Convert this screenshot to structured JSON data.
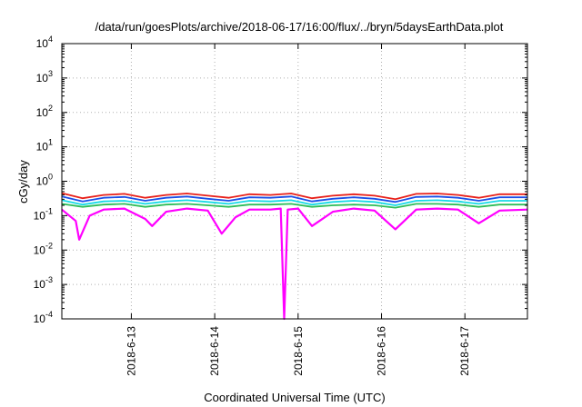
{
  "chart_data": {
    "type": "line",
    "title": "/data/run/goesPlots/archive/2018-06-17/16:00/flux/../bryn/5daysEarthData.plot",
    "xlabel": "Coordinated Universal Time (UTC)",
    "ylabel": "cGy/day",
    "yscale": "log",
    "ylim": [
      0.0001,
      10000
    ],
    "y_ticks": [
      {
        "base": "10",
        "exp": "-4"
      },
      {
        "base": "10",
        "exp": "-3"
      },
      {
        "base": "10",
        "exp": "-2"
      },
      {
        "base": "10",
        "exp": "-1"
      },
      {
        "base": "10",
        "exp": "0"
      },
      {
        "base": "10",
        "exp": "1"
      },
      {
        "base": "10",
        "exp": "2"
      },
      {
        "base": "10",
        "exp": "3"
      },
      {
        "base": "10",
        "exp": "4"
      }
    ],
    "xlim": [
      "2018-06-12 04:00",
      "2018-06-17 18:00"
    ],
    "x_ticks": [
      "2018-6-13",
      "2018-6-14",
      "2018-6-15",
      "2018-6-16",
      "2018-6-17"
    ],
    "grid": true,
    "colors": {
      "series": [
        "#e8201a",
        "#1a4fe8",
        "#17d9e6",
        "#2dbd58",
        "#ff00ff"
      ],
      "grid": "#b0b0b0"
    },
    "series": [
      {
        "values": [
          [
            "2018-06-12 04:00",
            0.45
          ],
          [
            "2018-06-12 10:00",
            0.32
          ],
          [
            "2018-06-12 16:00",
            0.4
          ],
          [
            "2018-06-12 22:00",
            0.43
          ],
          [
            "2018-06-13 04:00",
            0.33
          ],
          [
            "2018-06-13 10:00",
            0.4
          ],
          [
            "2018-06-13 16:00",
            0.44
          ],
          [
            "2018-06-13 22:00",
            0.38
          ],
          [
            "2018-06-14 04:00",
            0.33
          ],
          [
            "2018-06-14 10:00",
            0.42
          ],
          [
            "2018-06-14 16:00",
            0.4
          ],
          [
            "2018-06-14 22:00",
            0.44
          ],
          [
            "2018-06-15 04:00",
            0.32
          ],
          [
            "2018-06-15 10:00",
            0.38
          ],
          [
            "2018-06-15 16:00",
            0.42
          ],
          [
            "2018-06-15 22:00",
            0.38
          ],
          [
            "2018-06-16 04:00",
            0.3
          ],
          [
            "2018-06-16 10:00",
            0.43
          ],
          [
            "2018-06-16 16:00",
            0.44
          ],
          [
            "2018-06-16 22:00",
            0.4
          ],
          [
            "2018-06-17 04:00",
            0.33
          ],
          [
            "2018-06-17 10:00",
            0.42
          ],
          [
            "2018-06-17 18:00",
            0.42
          ]
        ]
      },
      {
        "values": [
          [
            "2018-06-12 04:00",
            0.36
          ],
          [
            "2018-06-12 10:00",
            0.26
          ],
          [
            "2018-06-12 16:00",
            0.33
          ],
          [
            "2018-06-12 22:00",
            0.35
          ],
          [
            "2018-06-13 04:00",
            0.27
          ],
          [
            "2018-06-13 10:00",
            0.33
          ],
          [
            "2018-06-13 16:00",
            0.36
          ],
          [
            "2018-06-13 22:00",
            0.31
          ],
          [
            "2018-06-14 04:00",
            0.27
          ],
          [
            "2018-06-14 10:00",
            0.34
          ],
          [
            "2018-06-14 16:00",
            0.33
          ],
          [
            "2018-06-14 22:00",
            0.36
          ],
          [
            "2018-06-15 04:00",
            0.26
          ],
          [
            "2018-06-15 10:00",
            0.31
          ],
          [
            "2018-06-15 16:00",
            0.34
          ],
          [
            "2018-06-15 22:00",
            0.31
          ],
          [
            "2018-06-16 04:00",
            0.25
          ],
          [
            "2018-06-16 10:00",
            0.35
          ],
          [
            "2018-06-16 16:00",
            0.36
          ],
          [
            "2018-06-16 22:00",
            0.33
          ],
          [
            "2018-06-17 04:00",
            0.27
          ],
          [
            "2018-06-17 10:00",
            0.34
          ],
          [
            "2018-06-17 18:00",
            0.34
          ]
        ]
      },
      {
        "values": [
          [
            "2018-06-12 04:00",
            0.28
          ],
          [
            "2018-06-12 10:00",
            0.21
          ],
          [
            "2018-06-12 16:00",
            0.26
          ],
          [
            "2018-06-12 22:00",
            0.27
          ],
          [
            "2018-06-13 04:00",
            0.22
          ],
          [
            "2018-06-13 10:00",
            0.26
          ],
          [
            "2018-06-13 16:00",
            0.28
          ],
          [
            "2018-06-13 22:00",
            0.25
          ],
          [
            "2018-06-14 04:00",
            0.22
          ],
          [
            "2018-06-14 10:00",
            0.27
          ],
          [
            "2018-06-14 16:00",
            0.26
          ],
          [
            "2018-06-14 22:00",
            0.28
          ],
          [
            "2018-06-15 04:00",
            0.21
          ],
          [
            "2018-06-15 10:00",
            0.25
          ],
          [
            "2018-06-15 16:00",
            0.27
          ],
          [
            "2018-06-15 22:00",
            0.25
          ],
          [
            "2018-06-16 04:00",
            0.2
          ],
          [
            "2018-06-16 10:00",
            0.27
          ],
          [
            "2018-06-16 16:00",
            0.28
          ],
          [
            "2018-06-16 22:00",
            0.26
          ],
          [
            "2018-06-17 04:00",
            0.22
          ],
          [
            "2018-06-17 10:00",
            0.27
          ],
          [
            "2018-06-17 18:00",
            0.27
          ]
        ]
      },
      {
        "values": [
          [
            "2018-06-12 04:00",
            0.22
          ],
          [
            "2018-06-12 10:00",
            0.18
          ],
          [
            "2018-06-12 16:00",
            0.21
          ],
          [
            "2018-06-12 22:00",
            0.22
          ],
          [
            "2018-06-13 04:00",
            0.18
          ],
          [
            "2018-06-13 10:00",
            0.21
          ],
          [
            "2018-06-13 16:00",
            0.22
          ],
          [
            "2018-06-13 22:00",
            0.2
          ],
          [
            "2018-06-14 04:00",
            0.18
          ],
          [
            "2018-06-14 10:00",
            0.21
          ],
          [
            "2018-06-14 16:00",
            0.21
          ],
          [
            "2018-06-14 22:00",
            0.22
          ],
          [
            "2018-06-15 04:00",
            0.18
          ],
          [
            "2018-06-15 10:00",
            0.2
          ],
          [
            "2018-06-15 16:00",
            0.21
          ],
          [
            "2018-06-15 22:00",
            0.2
          ],
          [
            "2018-06-16 04:00",
            0.17
          ],
          [
            "2018-06-16 10:00",
            0.22
          ],
          [
            "2018-06-16 16:00",
            0.22
          ],
          [
            "2018-06-16 22:00",
            0.21
          ],
          [
            "2018-06-17 04:00",
            0.18
          ],
          [
            "2018-06-17 10:00",
            0.21
          ],
          [
            "2018-06-17 18:00",
            0.21
          ]
        ]
      },
      {
        "values": [
          [
            "2018-06-12 04:00",
            0.15
          ],
          [
            "2018-06-12 08:00",
            0.07
          ],
          [
            "2018-06-12 09:00",
            0.02
          ],
          [
            "2018-06-12 12:00",
            0.1
          ],
          [
            "2018-06-12 16:00",
            0.15
          ],
          [
            "2018-06-12 22:00",
            0.16
          ],
          [
            "2018-06-13 04:00",
            0.08
          ],
          [
            "2018-06-13 06:00",
            0.05
          ],
          [
            "2018-06-13 10:00",
            0.13
          ],
          [
            "2018-06-13 16:00",
            0.16
          ],
          [
            "2018-06-13 22:00",
            0.14
          ],
          [
            "2018-06-14 02:00",
            0.03
          ],
          [
            "2018-06-14 06:00",
            0.09
          ],
          [
            "2018-06-14 10:00",
            0.15
          ],
          [
            "2018-06-14 16:00",
            0.15
          ],
          [
            "2018-06-14 19:00",
            0.16
          ],
          [
            "2018-06-14 20:00",
            0.0001
          ],
          [
            "2018-06-14 21:00",
            0.15
          ],
          [
            "2018-06-15 00:00",
            0.16
          ],
          [
            "2018-06-15 04:00",
            0.05
          ],
          [
            "2018-06-15 10:00",
            0.13
          ],
          [
            "2018-06-15 16:00",
            0.16
          ],
          [
            "2018-06-15 22:00",
            0.14
          ],
          [
            "2018-06-16 04:00",
            0.04
          ],
          [
            "2018-06-16 10:00",
            0.15
          ],
          [
            "2018-06-16 16:00",
            0.16
          ],
          [
            "2018-06-16 22:00",
            0.15
          ],
          [
            "2018-06-17 04:00",
            0.06
          ],
          [
            "2018-06-17 10:00",
            0.14
          ],
          [
            "2018-06-17 18:00",
            0.15
          ]
        ]
      }
    ]
  }
}
